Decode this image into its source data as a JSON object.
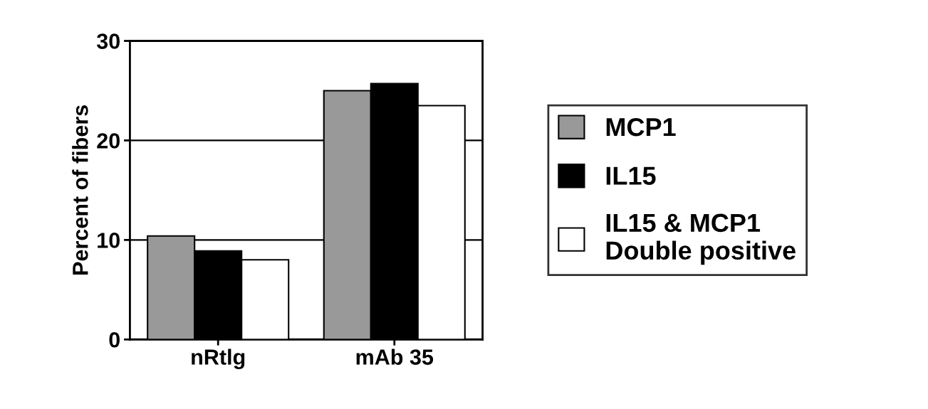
{
  "chart_data": {
    "type": "bar",
    "ylabel": "Percent of fibers",
    "categories": [
      "nRtlg",
      "mAb 35"
    ],
    "series": [
      {
        "name": "MCP1",
        "color": "#999999",
        "values": [
          10.4,
          25.0
        ]
      },
      {
        "name": "IL15",
        "color": "#000000",
        "values": [
          8.9,
          25.7
        ]
      },
      {
        "name": "IL15 & MCP1\nDouble positive",
        "color": "#ffffff",
        "values": [
          8.0,
          23.5
        ]
      }
    ],
    "ylim": [
      0,
      30
    ],
    "yticks": [
      0,
      10,
      20,
      30
    ],
    "grid": "y",
    "legend": "right"
  }
}
